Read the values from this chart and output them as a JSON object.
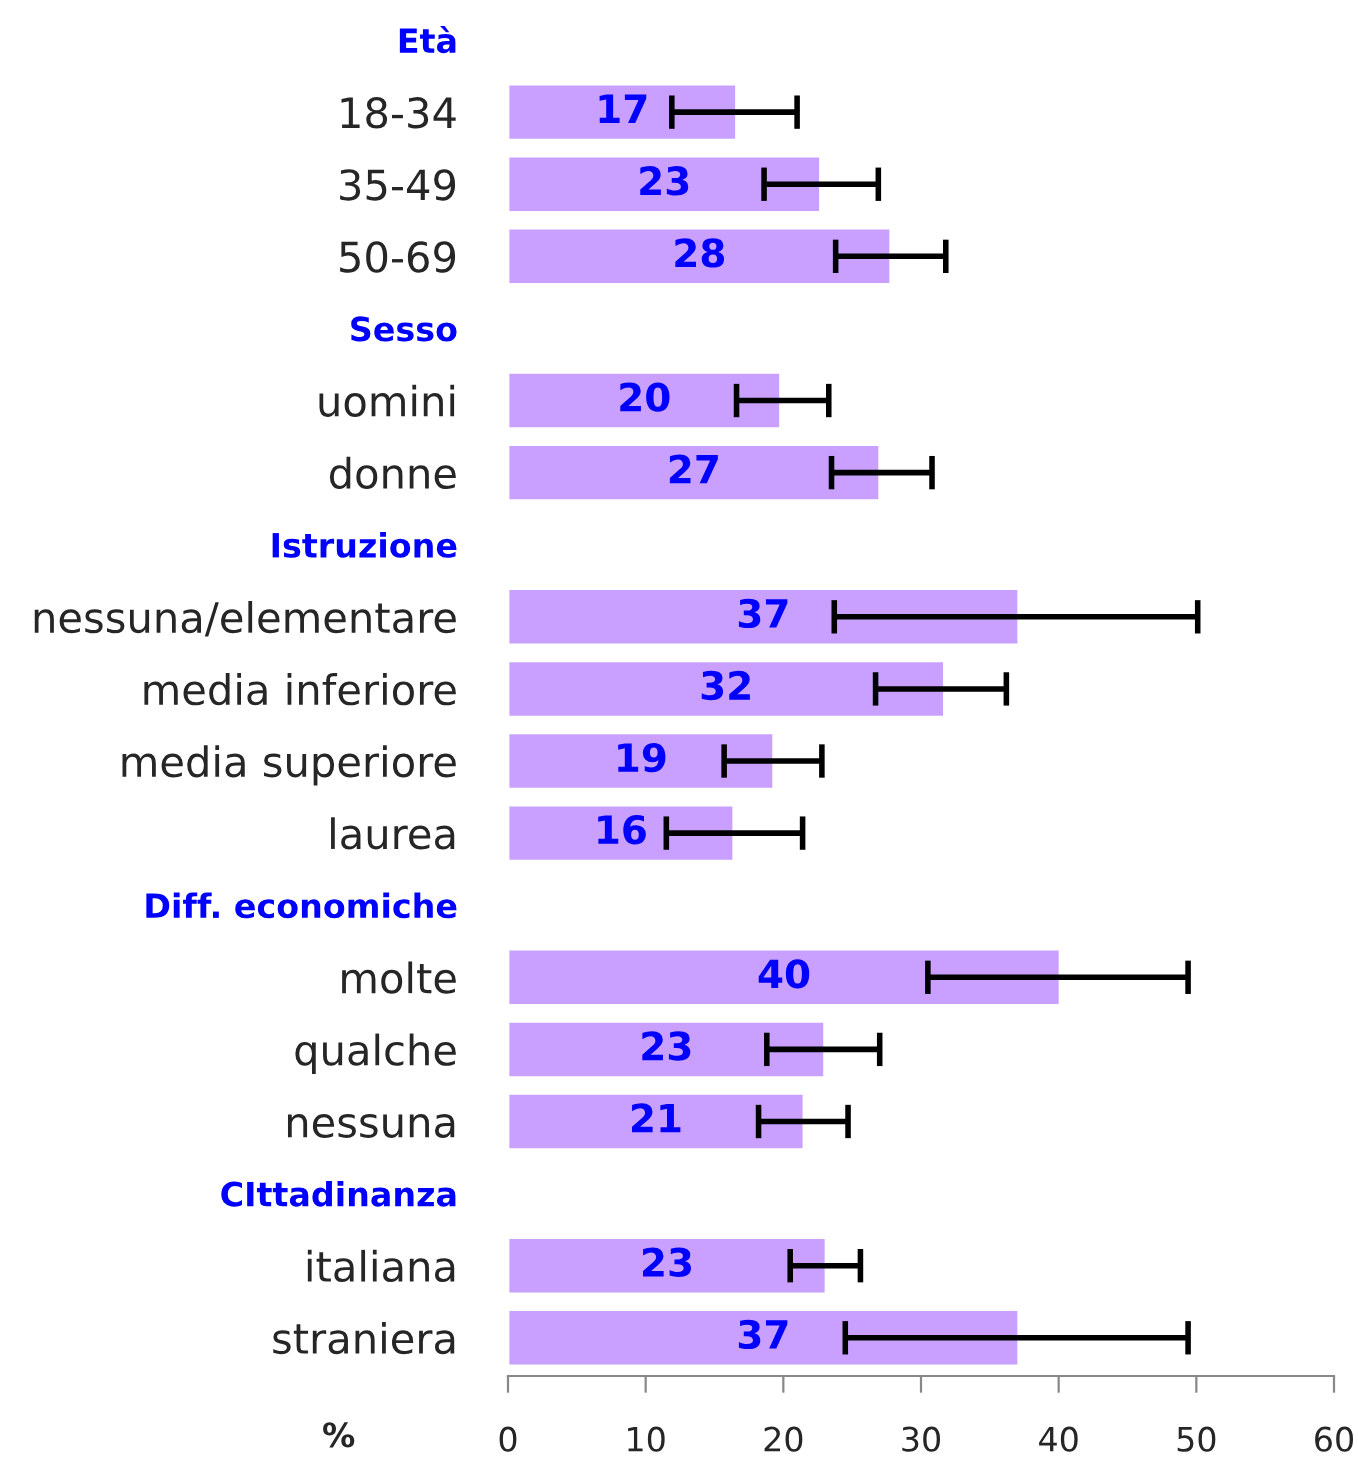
{
  "chart_data": {
    "type": "bar",
    "orientation": "horizontal",
    "xlabel": "%",
    "categories": [
      "Età",
      "18-34",
      "35-49",
      "50-69",
      "Sesso",
      "uomini",
      "donne",
      "Istruzione",
      "nessuna/elementare",
      "media inferiore",
      "media superiore",
      "laurea",
      "Diff. economiche",
      "molte",
      "qualche",
      "nessuna",
      "CIttadinanza",
      "italiana",
      "straniera"
    ],
    "series": [
      {
        "color": "#c9a0ff",
        "values": [
          null,
          16.6,
          22.7,
          27.8,
          null,
          19.8,
          27.0,
          null,
          37.1,
          31.7,
          19.3,
          16.4,
          null,
          40.1,
          23.0,
          21.5,
          null,
          23.1,
          37.1
        ],
        "errors": [
          null,
          [
            11.9,
            21.0
          ],
          [
            18.6,
            26.9
          ],
          [
            23.8,
            31.8
          ],
          null,
          [
            16.6,
            23.3
          ],
          [
            23.5,
            30.8
          ],
          null,
          [
            23.7,
            50.1
          ],
          [
            26.7,
            36.2
          ],
          [
            15.7,
            22.8
          ],
          [
            11.5,
            21.4
          ],
          null,
          [
            30.5,
            49.4
          ],
          [
            18.8,
            27.0
          ],
          [
            18.2,
            24.7
          ],
          null,
          [
            20.5,
            25.6
          ],
          [
            24.5,
            49.4
          ]
        ],
        "value_labels": [
          null,
          "17",
          "23",
          "28",
          null,
          "20",
          "27",
          null,
          "37",
          "32",
          "19",
          "16",
          null,
          "40",
          "23",
          "21",
          null,
          "23",
          "37"
        ]
      }
    ],
    "xlim": [
      0,
      60
    ],
    "xticks": [
      0,
      10,
      20,
      30,
      40,
      50,
      60
    ],
    "grid": false,
    "legend": false
  }
}
